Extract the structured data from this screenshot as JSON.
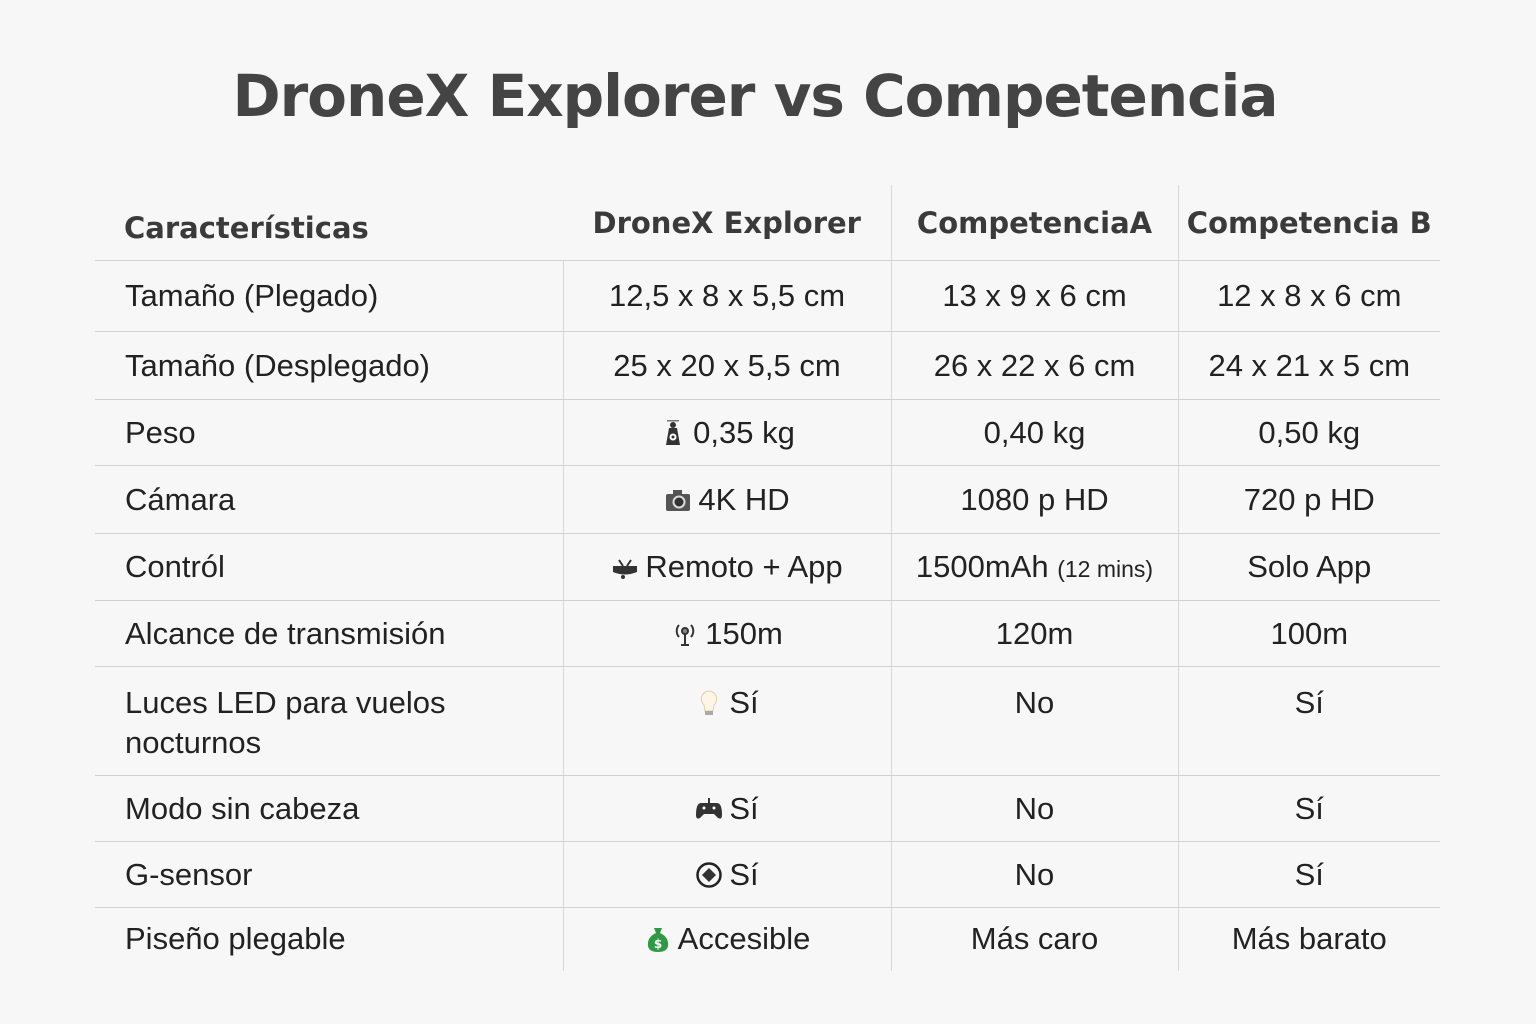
{
  "title": "DroneX Explorer vs  Competencia",
  "headers": [
    "Características",
    "DroneX Explorer",
    "CompetenciaA",
    "Competencia B"
  ],
  "rows": [
    {
      "feature": "Tamaño (Plegado)",
      "dronex": "12,5 x 8 x 5,5 cm",
      "icon": "",
      "a": "13 x 9 x 6 cm",
      "b": "12 x 8 x 6 cm"
    },
    {
      "feature": "Tamaño (Desplegado)",
      "dronex": "25 x 20 x 5,5 cm",
      "icon": "",
      "a": "26 x 22 x 6 cm",
      "b": "24 x 21 x 5 cm"
    },
    {
      "feature": "Peso",
      "dronex": "0,35 kg",
      "icon": "weight-icon",
      "a": "0,40 kg",
      "b": "0,50 kg"
    },
    {
      "feature": "Cámara",
      "dronex": "4K HD",
      "icon": "camera-icon",
      "a": "1080 p HD",
      "b": "720 p HD"
    },
    {
      "feature": "Contról",
      "dronex": "Remoto + App",
      "icon": "drone-icon",
      "a": "1500mAh",
      "a_note": "(12 mins)",
      "b": "Solo App"
    },
    {
      "feature": "Alcance de transmisión",
      "dronex": "150m",
      "icon": "antenna-icon",
      "a": "120m",
      "b": "100m"
    },
    {
      "feature": "Luces LED para vuelos nocturnos",
      "dronex": "Sí",
      "icon": "lightbulb-icon",
      "a": "No",
      "b": "Sí"
    },
    {
      "feature": "Modo sin cabeza",
      "dronex": "Sí",
      "icon": "gamepad-icon",
      "a": "No",
      "b": "Sí"
    },
    {
      "feature": "G-sensor",
      "dronex": "Sí",
      "icon": "sensor-icon",
      "a": "No",
      "b": "Sí"
    },
    {
      "feature": "Piseño plegable",
      "dronex": "Accesible",
      "icon": "money-bag-icon",
      "a": "Más caro",
      "b": "Más barato"
    }
  ],
  "colors": {
    "money_icon": "#2e9a45",
    "title": "#444444",
    "grid": "#d2d2d2"
  }
}
